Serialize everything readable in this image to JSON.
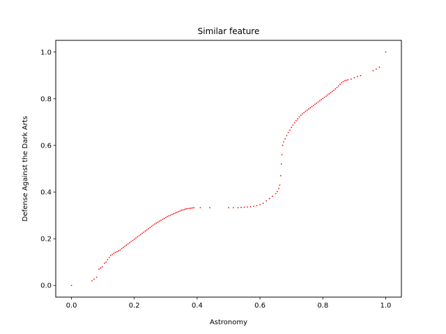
{
  "chart_data": {
    "type": "scatter",
    "title": "Similar feature",
    "xlabel": "Astronomy",
    "ylabel": "Defense Against the Dark Arts",
    "xlim": [
      -0.05,
      1.05
    ],
    "ylim": [
      -0.05,
      1.05
    ],
    "xticks": [
      0.0,
      0.2,
      0.4,
      0.6,
      0.8,
      1.0
    ],
    "xtick_labels": [
      "0.0",
      "0.2",
      "0.4",
      "0.6",
      "0.8",
      "1.0"
    ],
    "yticks": [
      0.0,
      0.2,
      0.4,
      0.6,
      0.8,
      1.0
    ],
    "ytick_labels": [
      "0.0",
      "0.2",
      "0.4",
      "0.6",
      "0.8",
      "1.0"
    ],
    "grid": false,
    "color": "#ff0000",
    "points": [
      [
        0.0,
        0.0
      ],
      [
        0.065,
        0.02
      ],
      [
        0.072,
        0.027
      ],
      [
        0.08,
        0.035
      ],
      [
        0.088,
        0.07
      ],
      [
        0.093,
        0.075
      ],
      [
        0.098,
        0.08
      ],
      [
        0.105,
        0.095
      ],
      [
        0.11,
        0.1
      ],
      [
        0.115,
        0.11
      ],
      [
        0.12,
        0.12
      ],
      [
        0.125,
        0.128
      ],
      [
        0.13,
        0.133
      ],
      [
        0.135,
        0.138
      ],
      [
        0.14,
        0.142
      ],
      [
        0.145,
        0.145
      ],
      [
        0.15,
        0.148
      ],
      [
        0.155,
        0.152
      ],
      [
        0.16,
        0.158
      ],
      [
        0.165,
        0.163
      ],
      [
        0.17,
        0.168
      ],
      [
        0.175,
        0.173
      ],
      [
        0.18,
        0.178
      ],
      [
        0.185,
        0.183
      ],
      [
        0.19,
        0.188
      ],
      [
        0.195,
        0.193
      ],
      [
        0.2,
        0.198
      ],
      [
        0.205,
        0.203
      ],
      [
        0.21,
        0.208
      ],
      [
        0.215,
        0.213
      ],
      [
        0.22,
        0.218
      ],
      [
        0.225,
        0.223
      ],
      [
        0.23,
        0.228
      ],
      [
        0.235,
        0.233
      ],
      [
        0.24,
        0.238
      ],
      [
        0.245,
        0.243
      ],
      [
        0.25,
        0.248
      ],
      [
        0.255,
        0.253
      ],
      [
        0.26,
        0.258
      ],
      [
        0.265,
        0.263
      ],
      [
        0.27,
        0.267
      ],
      [
        0.275,
        0.271
      ],
      [
        0.28,
        0.275
      ],
      [
        0.285,
        0.279
      ],
      [
        0.29,
        0.283
      ],
      [
        0.295,
        0.287
      ],
      [
        0.3,
        0.291
      ],
      [
        0.305,
        0.295
      ],
      [
        0.31,
        0.298
      ],
      [
        0.315,
        0.301
      ],
      [
        0.32,
        0.304
      ],
      [
        0.325,
        0.307
      ],
      [
        0.33,
        0.31
      ],
      [
        0.335,
        0.313
      ],
      [
        0.34,
        0.316
      ],
      [
        0.345,
        0.319
      ],
      [
        0.35,
        0.322
      ],
      [
        0.355,
        0.324
      ],
      [
        0.36,
        0.326
      ],
      [
        0.365,
        0.328
      ],
      [
        0.37,
        0.329
      ],
      [
        0.375,
        0.33
      ],
      [
        0.38,
        0.331
      ],
      [
        0.385,
        0.332
      ],
      [
        0.39,
        0.333
      ],
      [
        0.41,
        0.333
      ],
      [
        0.44,
        0.333
      ],
      [
        0.5,
        0.333
      ],
      [
        0.515,
        0.333
      ],
      [
        0.53,
        0.333
      ],
      [
        0.54,
        0.334
      ],
      [
        0.55,
        0.335
      ],
      [
        0.56,
        0.336
      ],
      [
        0.57,
        0.337
      ],
      [
        0.58,
        0.339
      ],
      [
        0.59,
        0.342
      ],
      [
        0.6,
        0.346
      ],
      [
        0.61,
        0.352
      ],
      [
        0.62,
        0.362
      ],
      [
        0.63,
        0.372
      ],
      [
        0.64,
        0.382
      ],
      [
        0.65,
        0.393
      ],
      [
        0.655,
        0.402
      ],
      [
        0.66,
        0.415
      ],
      [
        0.663,
        0.43
      ],
      [
        0.666,
        0.47
      ],
      [
        0.668,
        0.52
      ],
      [
        0.67,
        0.56
      ],
      [
        0.672,
        0.6
      ],
      [
        0.675,
        0.615
      ],
      [
        0.68,
        0.628
      ],
      [
        0.685,
        0.642
      ],
      [
        0.69,
        0.655
      ],
      [
        0.695,
        0.665
      ],
      [
        0.7,
        0.677
      ],
      [
        0.705,
        0.687
      ],
      [
        0.71,
        0.697
      ],
      [
        0.715,
        0.706
      ],
      [
        0.72,
        0.714
      ],
      [
        0.725,
        0.722
      ],
      [
        0.73,
        0.729
      ],
      [
        0.735,
        0.735
      ],
      [
        0.74,
        0.741
      ],
      [
        0.745,
        0.746
      ],
      [
        0.75,
        0.751
      ],
      [
        0.755,
        0.756
      ],
      [
        0.76,
        0.761
      ],
      [
        0.765,
        0.766
      ],
      [
        0.77,
        0.771
      ],
      [
        0.775,
        0.776
      ],
      [
        0.78,
        0.781
      ],
      [
        0.785,
        0.786
      ],
      [
        0.79,
        0.791
      ],
      [
        0.795,
        0.796
      ],
      [
        0.8,
        0.801
      ],
      [
        0.805,
        0.806
      ],
      [
        0.81,
        0.811
      ],
      [
        0.815,
        0.816
      ],
      [
        0.82,
        0.821
      ],
      [
        0.825,
        0.826
      ],
      [
        0.83,
        0.831
      ],
      [
        0.835,
        0.836
      ],
      [
        0.84,
        0.842
      ],
      [
        0.845,
        0.848
      ],
      [
        0.85,
        0.855
      ],
      [
        0.855,
        0.862
      ],
      [
        0.86,
        0.868
      ],
      [
        0.865,
        0.873
      ],
      [
        0.87,
        0.877
      ],
      [
        0.875,
        0.879
      ],
      [
        0.88,
        0.881
      ],
      [
        0.89,
        0.884
      ],
      [
        0.9,
        0.89
      ],
      [
        0.91,
        0.895
      ],
      [
        0.92,
        0.899
      ],
      [
        0.96,
        0.92
      ],
      [
        0.97,
        0.927
      ],
      [
        0.98,
        0.935
      ],
      [
        1.0,
        1.0
      ]
    ]
  }
}
